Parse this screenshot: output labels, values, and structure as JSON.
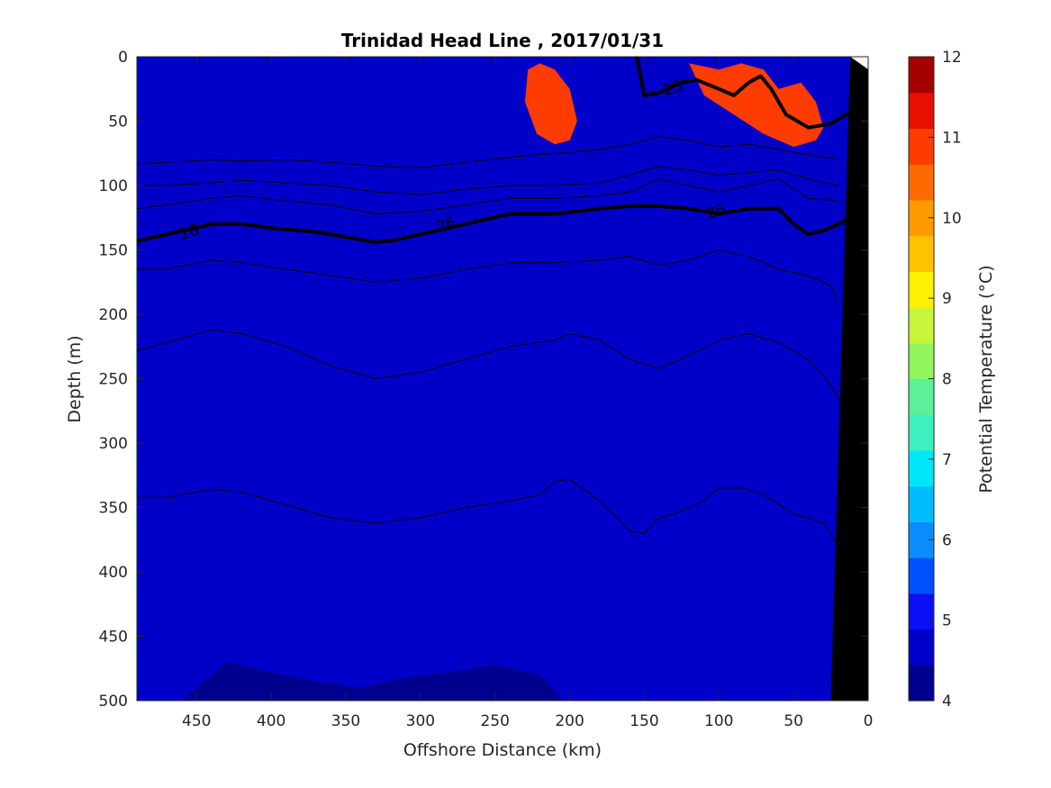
{
  "chart_data": {
    "type": "filled-contour",
    "title": "Trinidad Head Line , 2017/01/31",
    "xlabel": "Offshore Distance (km)",
    "ylabel": "Depth (m)",
    "xlim": [
      490,
      0
    ],
    "ylim": [
      0,
      500
    ],
    "x_reversed": true,
    "y_reversed": true,
    "x_ticks": [
      "450",
      "400",
      "350",
      "300",
      "250",
      "200",
      "150",
      "100",
      "50",
      "0"
    ],
    "x_tick_values": [
      450,
      400,
      350,
      300,
      250,
      200,
      150,
      100,
      50,
      0
    ],
    "y_ticks": [
      "0",
      "50",
      "100",
      "150",
      "200",
      "250",
      "300",
      "350",
      "400",
      "450",
      "500"
    ],
    "y_tick_values": [
      0,
      50,
      100,
      150,
      200,
      250,
      300,
      350,
      400,
      450,
      500
    ],
    "colorbar": {
      "label": "Potential Temperature (°C)",
      "range": [
        4,
        12
      ],
      "ticks": [
        "12",
        "11",
        "10",
        "9",
        "8",
        "7",
        "6",
        "5",
        "4"
      ],
      "tick_values": [
        12,
        11,
        10,
        9,
        8,
        7,
        6,
        5,
        4
      ],
      "level_step": 0.5,
      "colors": [
        "#00008f",
        "#0000c9",
        "#0a10f5",
        "#0050ff",
        "#0a8cff",
        "#00bcff",
        "#00e8f8",
        "#3cf0c0",
        "#5bf09a",
        "#93f55e",
        "#c8f53a",
        "#ffef00",
        "#ffc200",
        "#ff9a00",
        "#ff6a00",
        "#ff3c00",
        "#e80f00",
        "#a50000"
      ]
    },
    "temperature_field": {
      "x": [
        490,
        460,
        430,
        400,
        370,
        340,
        310,
        280,
        250,
        220,
        200,
        180,
        150,
        130,
        110,
        85,
        60,
        40,
        30,
        20,
        12
      ],
      "isotherm_levels": [
        11.5,
        11,
        10.5,
        10,
        9.5,
        9,
        8.5,
        8,
        7.5,
        7,
        6.5,
        6,
        5.5,
        5,
        4.5
      ],
      "isotherm_depths": [
        [
          -5,
          -5,
          -5,
          -5,
          -5,
          -5,
          10,
          8,
          2,
          40,
          30,
          15,
          5,
          10,
          15,
          10,
          5,
          5,
          10,
          20,
          25
        ],
        [
          -5,
          -5,
          -5,
          -5,
          -5,
          -5,
          -5,
          -5,
          -5,
          -5,
          -5,
          -5,
          -5,
          -5,
          -5,
          -5,
          -5,
          -5,
          -5,
          -5,
          -5
        ],
        [
          -5,
          -5,
          -5,
          -5,
          -5,
          -5,
          -5,
          50,
          65,
          60,
          58,
          55,
          50,
          55,
          60,
          65,
          70,
          75,
          80,
          80,
          85
        ],
        [
          85,
          85,
          84,
          85,
          86,
          90,
          92,
          88,
          85,
          78,
          75,
          70,
          68,
          72,
          80,
          82,
          78,
          85,
          88,
          85,
          80
        ],
        [
          120,
          115,
          110,
          112,
          110,
          115,
          125,
          115,
          112,
          110,
          108,
          100,
          98,
          100,
          110,
          108,
          95,
          100,
          110,
          110,
          100
        ],
        [
          142,
          138,
          130,
          132,
          135,
          140,
          142,
          132,
          125,
          122,
          122,
          120,
          118,
          118,
          122,
          120,
          115,
          130,
          138,
          132,
          122
        ],
        [
          168,
          165,
          158,
          162,
          168,
          175,
          178,
          170,
          162,
          158,
          160,
          158,
          160,
          170,
          165,
          155,
          158,
          165,
          180,
          175,
          155
        ],
        [
          205,
          198,
          188,
          195,
          208,
          215,
          212,
          200,
          188,
          185,
          190,
          192,
          210,
          225,
          210,
          190,
          195,
          210,
          225,
          220,
          190
        ],
        [
          230,
          225,
          215,
          220,
          232,
          248,
          245,
          232,
          220,
          215,
          212,
          212,
          235,
          250,
          235,
          212,
          218,
          232,
          248,
          245,
          220
        ],
        [
          258,
          255,
          242,
          250,
          262,
          275,
          270,
          258,
          245,
          240,
          245,
          252,
          268,
          280,
          262,
          240,
          248,
          262,
          275,
          270,
          245
        ],
        [
          290,
          288,
          275,
          282,
          298,
          310,
          302,
          285,
          270,
          268,
          280,
          285,
          300,
          310,
          290,
          265,
          275,
          295,
          310,
          305,
          280
        ],
        [
          332,
          328,
          318,
          322,
          338,
          345,
          340,
          325,
          315,
          312,
          320,
          322,
          332,
          340,
          318,
          295,
          305,
          330,
          345,
          340,
          320
        ],
        [
          380,
          372,
          355,
          365,
          382,
          388,
          380,
          372,
          365,
          360,
          375,
          398,
          410,
          400,
          375,
          355,
          370,
          392,
          405,
          398,
          380
        ],
        [
          440,
          430,
          405,
          415,
          425,
          430,
          422,
          415,
          408,
          405,
          430,
          460,
          470,
          458,
          445,
          430,
          450,
          468,
          478,
          475,
          465
        ],
        [
          520,
          500,
          470,
          478,
          485,
          490,
          482,
          478,
          472,
          480,
          505,
          520,
          525,
          520,
          510,
          500,
          515,
          525,
          530,
          530,
          520
        ]
      ],
      "warm_cores_above_11_5": [
        {
          "x": [
            220,
            210,
            200,
            195,
            200,
            210,
            222,
            230,
            228
          ],
          "depth": [
            5,
            10,
            25,
            50,
            65,
            68,
            60,
            35,
            10
          ]
        },
        {
          "x": [
            120,
            100,
            85,
            70,
            60,
            45,
            35,
            30,
            35,
            50,
            70,
            90,
            110
          ],
          "depth": [
            5,
            10,
            5,
            10,
            25,
            20,
            35,
            55,
            65,
            70,
            60,
            45,
            30
          ]
        }
      ]
    },
    "density_contours": [
      {
        "label": "",
        "x": [
          490,
          470,
          440,
          420,
          390,
          360,
          330,
          300,
          270,
          240,
          210,
          180,
          160,
          140,
          120,
          100,
          80,
          60,
          40,
          20
        ],
        "depth": [
          83,
          82,
          80,
          81,
          80,
          82,
          85,
          86,
          82,
          78,
          75,
          72,
          68,
          62,
          65,
          70,
          68,
          72,
          76,
          80
        ]
      },
      {
        "label": "",
        "x": [
          490,
          470,
          440,
          420,
          390,
          360,
          330,
          300,
          270,
          240,
          210,
          180,
          160,
          140,
          120,
          100,
          80,
          60,
          40,
          20
        ],
        "depth": [
          100,
          100,
          98,
          96,
          98,
          100,
          105,
          107,
          103,
          100,
          100,
          98,
          92,
          85,
          88,
          92,
          90,
          88,
          95,
          100
        ]
      },
      {
        "label": "",
        "x": [
          490,
          470,
          440,
          420,
          390,
          360,
          330,
          300,
          270,
          240,
          210,
          180,
          160,
          140,
          120,
          100,
          80,
          60,
          40,
          20
        ],
        "depth": [
          118,
          115,
          110,
          108,
          112,
          115,
          122,
          120,
          115,
          110,
          110,
          108,
          105,
          95,
          100,
          105,
          100,
          95,
          110,
          112
        ]
      },
      {
        "label": "26",
        "x": [
          490,
          470,
          440,
          420,
          400,
          370,
          350,
          330,
          320,
          300,
          270,
          240,
          210,
          180,
          160,
          140,
          120,
          100,
          80,
          60,
          50,
          40,
          30,
          20,
          12
        ],
        "depth": [
          143,
          138,
          130,
          130,
          133,
          136,
          140,
          144,
          143,
          138,
          130,
          122,
          122,
          118,
          116,
          116,
          118,
          122,
          118,
          118,
          130,
          138,
          135,
          130,
          125
        ]
      },
      {
        "label": "",
        "x": [
          490,
          470,
          440,
          420,
          390,
          360,
          330,
          300,
          270,
          240,
          210,
          180,
          160,
          140,
          120,
          100,
          80,
          60,
          40,
          25,
          20
        ],
        "depth": [
          165,
          165,
          158,
          160,
          165,
          170,
          175,
          172,
          165,
          160,
          160,
          158,
          155,
          162,
          158,
          150,
          155,
          165,
          170,
          178,
          190
        ]
      },
      {
        "label": "",
        "x": [
          490,
          470,
          440,
          420,
          390,
          360,
          330,
          300,
          270,
          240,
          210,
          200,
          180,
          160,
          140,
          120,
          100,
          80,
          60,
          40,
          25,
          15
        ],
        "depth": [
          228,
          222,
          212,
          215,
          225,
          240,
          250,
          245,
          235,
          225,
          220,
          215,
          220,
          235,
          242,
          232,
          220,
          215,
          222,
          235,
          255,
          275
        ]
      },
      {
        "label": "",
        "x": [
          490,
          470,
          440,
          420,
          390,
          360,
          330,
          300,
          270,
          240,
          220,
          210,
          200,
          180,
          160,
          150,
          140,
          130,
          110,
          100,
          85,
          70,
          50,
          30,
          20
        ],
        "depth": [
          342,
          342,
          336,
          338,
          348,
          358,
          362,
          358,
          350,
          345,
          340,
          330,
          328,
          345,
          368,
          370,
          358,
          355,
          345,
          335,
          335,
          340,
          355,
          362,
          380
        ]
      },
      {
        "label": "25",
        "x": [
          155,
          150,
          140,
          125,
          115,
          100,
          90,
          80,
          72,
          65,
          55,
          40,
          25,
          15,
          8
        ],
        "depth": [
          0,
          30,
          28,
          20,
          18,
          25,
          30,
          20,
          15,
          25,
          45,
          55,
          52,
          45,
          40
        ]
      }
    ],
    "contour_label_positions": [
      {
        "text": "26",
        "x": 455,
        "depth": 136
      },
      {
        "text": "26",
        "x": 283,
        "depth": 130
      },
      {
        "text": "26",
        "x": 102,
        "depth": 120
      },
      {
        "text": "25",
        "x": 131,
        "depth": 24
      }
    ],
    "land_mask": {
      "x": [
        25,
        0,
        0,
        12
      ],
      "depth": [
        500,
        500,
        0,
        0
      ]
    }
  }
}
